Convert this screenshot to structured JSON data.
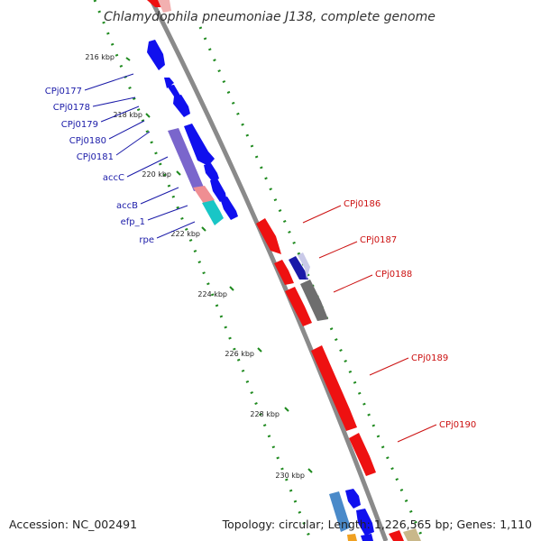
{
  "header": {
    "title": "Chlamydophila pneumoniae J138, complete genome"
  },
  "footer": {
    "accession": "Accession: NC_002491",
    "topology": "Topology: circular; Length: 1,226,565 bp; Genes: 1,110"
  },
  "colors": {
    "backbone": "#8c8c8c",
    "ticks": "#1f8a1f",
    "gene_blue": "#1010ee",
    "gene_red": "#ee1111",
    "gene_gray": "#6e6e6e",
    "gene_cyan": "#19c6c6",
    "gene_pink": "#ef8e92",
    "gene_purple": "#7a66cc",
    "label_left": "#1a1aa8",
    "label_right": "#cc1111"
  },
  "kbp_ticks": [
    "216 kbp",
    "218 kbp",
    "220 kbp",
    "222 kbp",
    "224 kbp",
    "226 kbp",
    "228 kbp",
    "230 kbp"
  ],
  "left_labels": [
    "CPj0177",
    "CPj0178",
    "CPj0179",
    "CPj0180",
    "CPj0181",
    "accC",
    "accB",
    "efp_1",
    "rpe"
  ],
  "right_labels": [
    "CPj0186",
    "CPj0187",
    "CPj0188",
    "CPj0189",
    "CPj0190"
  ]
}
